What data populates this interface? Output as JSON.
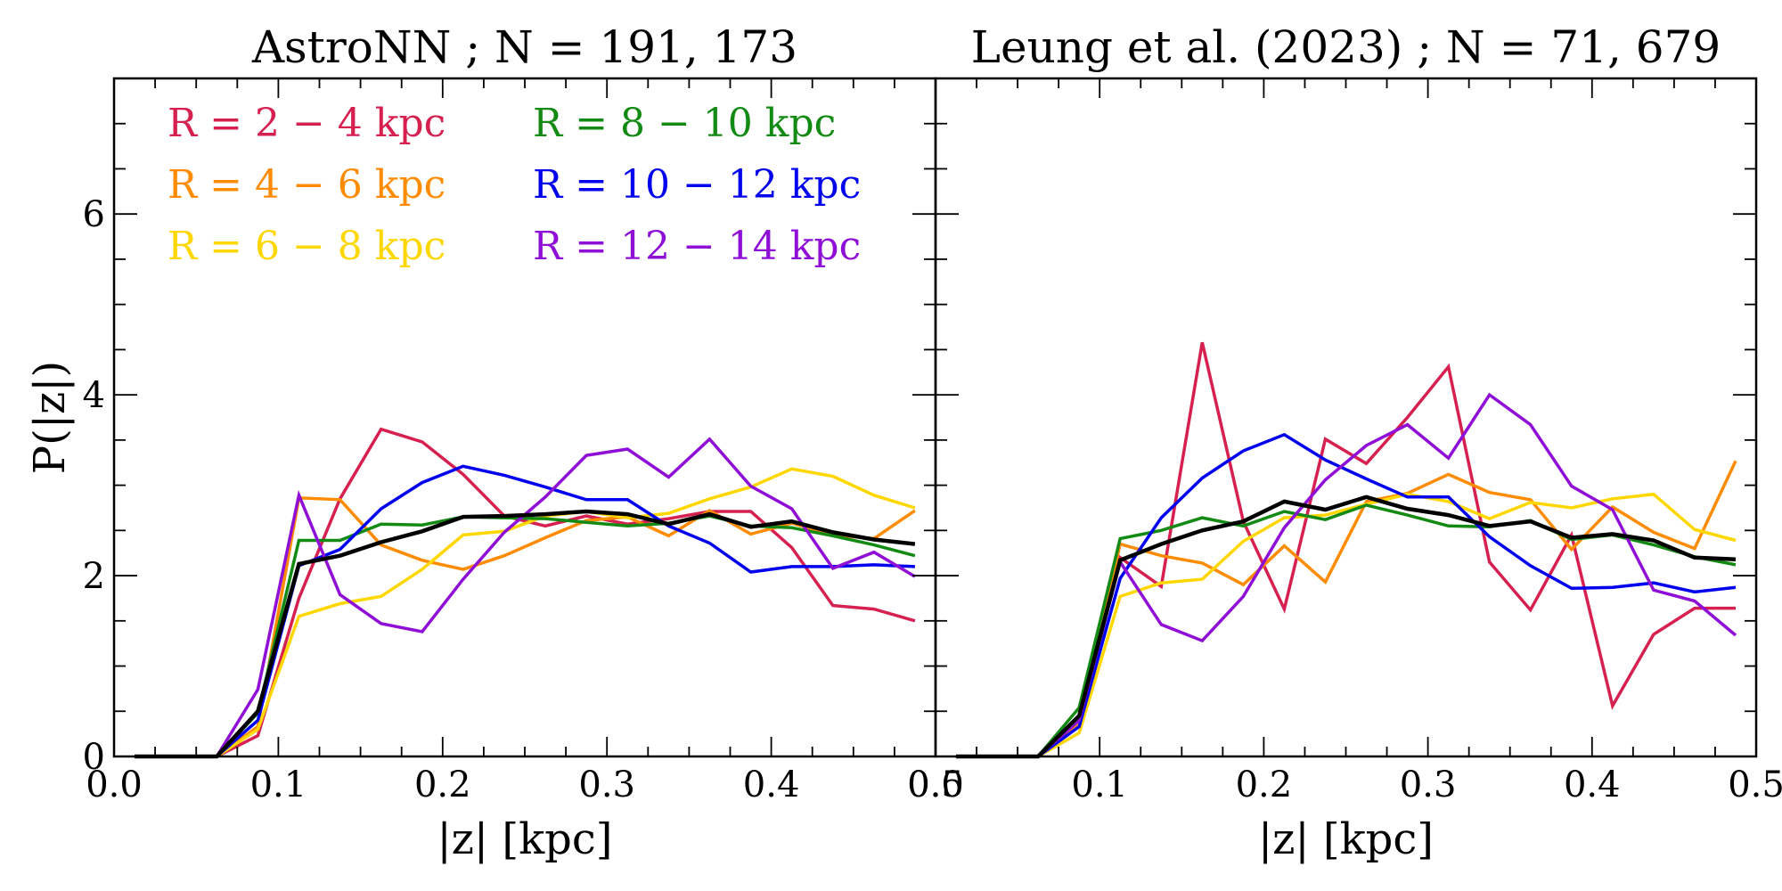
{
  "chart_data": [
    {
      "type": "line",
      "title": "AstroNN ; N = 191, 173",
      "xlabel": "|z| [kpc]",
      "ylabel": "P(|z|)",
      "xlim": [
        0.0,
        0.5
      ],
      "ylim": [
        0,
        7.5
      ],
      "x_ticks": [
        "0.0",
        "0.1",
        "0.2",
        "0.3",
        "0.4",
        "0.5"
      ],
      "y_ticks": [
        "0",
        "2",
        "4",
        "6"
      ],
      "grid": false,
      "legend_placement": "upper-left, two columns",
      "x": [
        0.0125,
        0.0375,
        0.0625,
        0.0875,
        0.1125,
        0.1375,
        0.1625,
        0.1875,
        0.2125,
        0.2375,
        0.2625,
        0.2875,
        0.3125,
        0.3375,
        0.3625,
        0.3875,
        0.4125,
        0.4375,
        0.4625,
        0.4875
      ],
      "series": [
        {
          "name": "R = 2 − 4 kpc",
          "color": "#d62050",
          "values": [
            0,
            0,
            0,
            0.23,
            1.75,
            2.85,
            3.62,
            3.48,
            3.12,
            2.66,
            2.55,
            2.66,
            2.57,
            2.63,
            2.71,
            2.71,
            2.31,
            1.67,
            1.63,
            1.5
          ]
        },
        {
          "name": "R = 4 − 6 kpc",
          "color": "#ff8c00",
          "values": [
            0,
            0,
            0,
            0.33,
            2.86,
            2.84,
            2.34,
            2.17,
            2.07,
            2.22,
            2.42,
            2.61,
            2.65,
            2.44,
            2.72,
            2.46,
            2.58,
            2.45,
            2.41,
            2.72
          ]
        },
        {
          "name": "R = 6 − 8 kpc",
          "color": "#ffd700",
          "values": [
            0,
            0,
            0,
            0.3,
            1.55,
            1.69,
            1.77,
            2.07,
            2.45,
            2.49,
            2.66,
            2.71,
            2.64,
            2.69,
            2.85,
            2.98,
            3.18,
            3.1,
            2.89,
            2.75
          ]
        },
        {
          "name": "R = 8 − 10 kpc",
          "color": "#138a13",
          "values": [
            0,
            0,
            0,
            0.48,
            2.39,
            2.39,
            2.57,
            2.56,
            2.65,
            2.64,
            2.63,
            2.59,
            2.55,
            2.58,
            2.66,
            2.55,
            2.53,
            2.44,
            2.34,
            2.22
          ]
        },
        {
          "name": "R = 10 − 12 kpc",
          "color": "#0000ee",
          "values": [
            0,
            0,
            0,
            0.4,
            2.11,
            2.29,
            2.74,
            3.03,
            3.21,
            3.11,
            2.98,
            2.84,
            2.84,
            2.55,
            2.36,
            2.04,
            2.1,
            2.1,
            2.12,
            2.1
          ]
        },
        {
          "name": "R = 12 − 14 kpc",
          "color": "#8f0fd6",
          "values": [
            0,
            0,
            0,
            0.74,
            2.89,
            1.79,
            1.47,
            1.38,
            1.96,
            2.48,
            2.87,
            3.33,
            3.4,
            3.09,
            3.51,
            2.99,
            2.74,
            2.08,
            2.26,
            1.99
          ]
        },
        {
          "color": "#000000",
          "values": [
            0,
            0,
            0,
            0.5,
            2.13,
            2.22,
            2.37,
            2.49,
            2.65,
            2.66,
            2.68,
            2.71,
            2.68,
            2.57,
            2.68,
            2.54,
            2.6,
            2.48,
            2.4,
            2.35
          ]
        }
      ]
    },
    {
      "type": "line",
      "title": "Leung et al. (2023) ; N = 71, 679",
      "xlabel": "|z| [kpc]",
      "xlim": [
        0.0,
        0.5
      ],
      "ylim": [
        0,
        7.5
      ],
      "x_ticks": [
        "0.0",
        "0.1",
        "0.2",
        "0.3",
        "0.4",
        "0.5"
      ],
      "grid": false,
      "x": [
        0.0125,
        0.0375,
        0.0625,
        0.0875,
        0.1125,
        0.1375,
        0.1625,
        0.1875,
        0.2125,
        0.2375,
        0.2625,
        0.2875,
        0.3125,
        0.3375,
        0.3625,
        0.3875,
        0.4125,
        0.4375,
        0.4625,
        0.4875
      ],
      "series": [
        {
          "name": "R = 2 − 4 kpc",
          "color": "#d62050",
          "values": [
            0,
            0,
            0,
            0.4,
            2.2,
            1.88,
            4.58,
            2.6,
            1.63,
            3.51,
            3.24,
            3.75,
            4.31,
            2.15,
            1.62,
            2.45,
            0.56,
            1.35,
            1.64,
            1.64
          ]
        },
        {
          "name": "R = 4 − 6 kpc",
          "color": "#ff8c00",
          "values": [
            0,
            0,
            0,
            0.35,
            2.35,
            2.22,
            2.14,
            1.9,
            2.33,
            1.93,
            2.82,
            2.91,
            3.12,
            2.92,
            2.84,
            2.29,
            2.76,
            2.48,
            2.3,
            3.27
          ]
        },
        {
          "name": "R = 6 − 8 kpc",
          "color": "#ffd700",
          "values": [
            0,
            0,
            0,
            0.26,
            1.77,
            1.92,
            1.96,
            2.38,
            2.64,
            2.67,
            2.79,
            2.9,
            2.82,
            2.63,
            2.81,
            2.75,
            2.85,
            2.9,
            2.51,
            2.39
          ]
        },
        {
          "name": "R = 8 − 10 kpc",
          "color": "#138a13",
          "values": [
            0,
            0,
            0,
            0.54,
            2.41,
            2.5,
            2.64,
            2.55,
            2.71,
            2.62,
            2.78,
            2.67,
            2.55,
            2.54,
            2.61,
            2.4,
            2.45,
            2.34,
            2.21,
            2.12
          ]
        },
        {
          "name": "R = 10 − 12 kpc",
          "color": "#0000ee",
          "values": [
            0,
            0,
            0,
            0.33,
            1.97,
            2.64,
            3.08,
            3.38,
            3.56,
            3.28,
            3.07,
            2.87,
            2.87,
            2.43,
            2.11,
            1.86,
            1.87,
            1.92,
            1.82,
            1.87
          ]
        },
        {
          "name": "R = 12 − 14 kpc",
          "color": "#8f0fd6",
          "values": [
            0,
            0,
            0,
            0.4,
            2.15,
            1.46,
            1.28,
            1.77,
            2.53,
            3.06,
            3.44,
            3.67,
            3.3,
            4.0,
            3.67,
            2.99,
            2.73,
            1.84,
            1.72,
            1.34
          ]
        },
        {
          "color": "#000000",
          "values": [
            0,
            0,
            0,
            0.45,
            2.17,
            2.35,
            2.5,
            2.6,
            2.82,
            2.73,
            2.87,
            2.74,
            2.67,
            2.55,
            2.6,
            2.42,
            2.46,
            2.39,
            2.2,
            2.18
          ]
        }
      ]
    }
  ]
}
